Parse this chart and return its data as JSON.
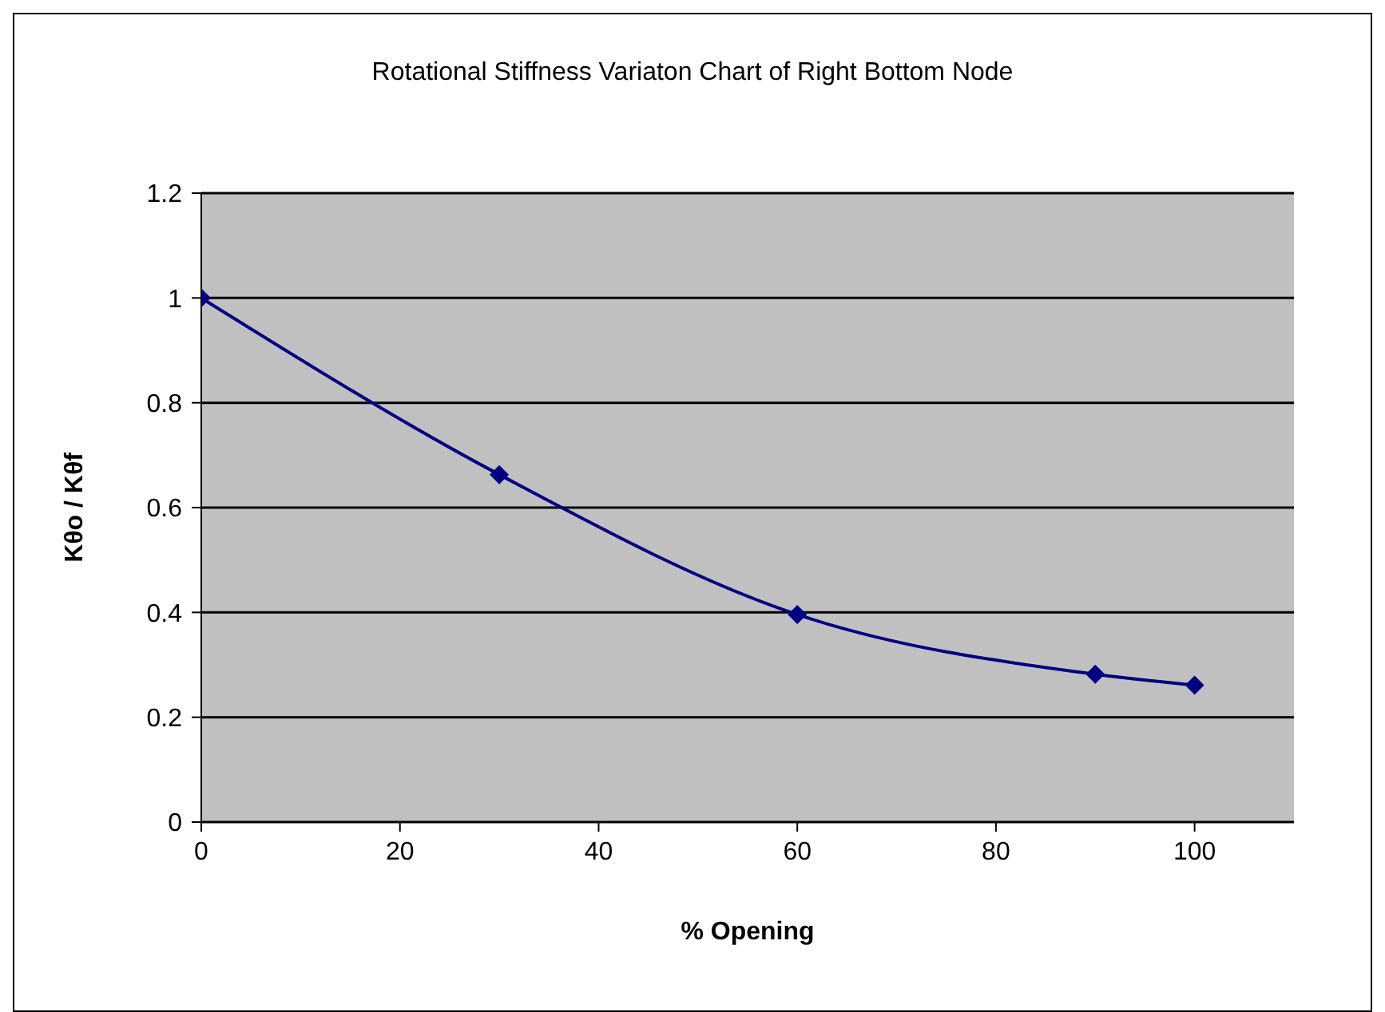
{
  "chart_data": {
    "type": "line",
    "title": "Rotational Stiffness Variaton Chart of Right Bottom Node",
    "xlabel": "% Opening",
    "ylabel": "Kθo / Kθf",
    "x": [
      0,
      30,
      60,
      90,
      100
    ],
    "series": [
      {
        "color": "#000080",
        "values": [
          1.0,
          0.663,
          0.396,
          0.282,
          0.261
        ]
      }
    ],
    "xlim": [
      0,
      110
    ],
    "xticks": [
      0,
      20,
      40,
      60,
      80,
      100
    ],
    "ylim": [
      0,
      1.2
    ],
    "yticks": [
      0,
      0.2,
      0.4,
      0.6,
      0.8,
      1,
      1.2
    ],
    "grid": "y",
    "marker": "diamond",
    "line_style": "solid"
  }
}
